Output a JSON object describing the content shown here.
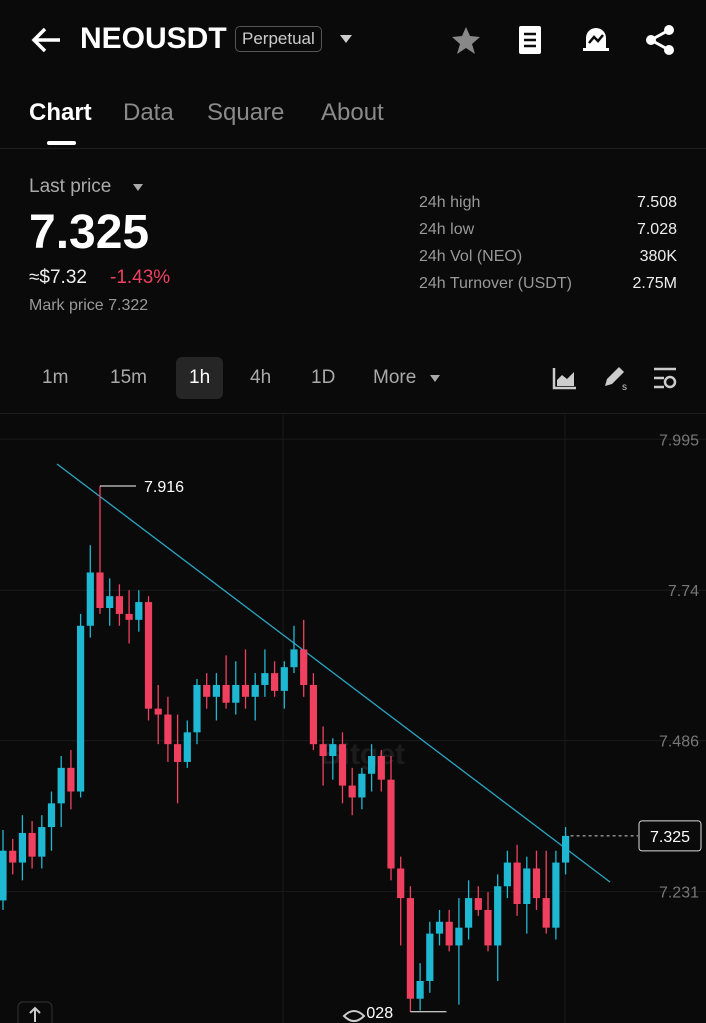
{
  "header": {
    "symbol": "NEOUSDT",
    "badge": "Perpetual"
  },
  "tabs": [
    "Chart",
    "Data",
    "Square",
    "About"
  ],
  "price": {
    "label": "Last price",
    "value": "7.325",
    "usd": "≈$7.32",
    "change": "-1.43%",
    "mark": "Mark price 7.322"
  },
  "stats": [
    {
      "label": "24h high",
      "value": "7.508"
    },
    {
      "label": "24h low",
      "value": "7.028"
    },
    {
      "label": "24h Vol (NEO)",
      "value": "380K"
    },
    {
      "label": "24h Turnover (USDT)",
      "value": "2.75M"
    }
  ],
  "intervals": [
    "1m",
    "15m",
    "1h",
    "4h",
    "1D",
    "More"
  ],
  "chart_data": {
    "type": "candlestick",
    "up_color": "#1fb8d3",
    "down_color": "#f0405f",
    "grid": true,
    "ylim": [
      7.009,
      8.036
    ],
    "yticks": [
      7.995,
      7.74,
      7.486,
      7.231
    ],
    "watermark": "Bitget",
    "max_label": "7.916",
    "min_label": "028",
    "last_price_label": "7.325",
    "open": [
      7.216,
      7.3,
      7.28,
      7.33,
      7.29,
      7.34,
      7.38,
      7.44,
      7.4,
      7.68,
      7.77,
      7.71,
      7.73,
      7.7,
      7.69,
      7.72,
      7.54,
      7.53,
      7.48,
      7.45,
      7.5,
      7.58,
      7.56,
      7.58,
      7.55,
      7.58,
      7.56,
      7.58,
      7.6,
      7.57,
      7.61,
      7.64,
      7.58,
      7.48,
      7.46,
      7.48,
      7.41,
      7.39,
      7.43,
      7.46,
      7.42,
      7.27,
      7.22,
      7.05,
      7.08,
      7.16,
      7.18,
      7.14,
      7.17,
      7.22,
      7.2,
      7.14,
      7.24,
      7.28,
      7.21,
      7.27,
      7.22,
      7.17,
      7.28
    ],
    "high": [
      7.335,
      7.32,
      7.36,
      7.35,
      7.36,
      7.4,
      7.46,
      7.47,
      7.7,
      7.816,
      7.916,
      7.76,
      7.75,
      7.74,
      7.74,
      7.73,
      7.58,
      7.56,
      7.53,
      7.52,
      7.59,
      7.6,
      7.6,
      7.63,
      7.62,
      7.64,
      7.6,
      7.64,
      7.62,
      7.62,
      7.68,
      7.69,
      7.6,
      7.51,
      7.49,
      7.5,
      7.44,
      7.44,
      7.48,
      7.47,
      7.46,
      7.29,
      7.24,
      7.11,
      7.18,
      7.2,
      7.2,
      7.22,
      7.25,
      7.24,
      7.23,
      7.26,
      7.3,
      7.31,
      7.29,
      7.3,
      7.3,
      7.3,
      7.34
    ],
    "low": [
      7.2,
      7.26,
      7.25,
      7.27,
      7.27,
      7.3,
      7.34,
      7.37,
      7.39,
      7.66,
      7.7,
      7.68,
      7.68,
      7.65,
      7.67,
      7.52,
      7.48,
      7.45,
      7.38,
      7.44,
      7.48,
      7.54,
      7.52,
      7.54,
      7.53,
      7.54,
      7.52,
      7.56,
      7.56,
      7.54,
      7.6,
      7.56,
      7.47,
      7.41,
      7.42,
      7.38,
      7.36,
      7.37,
      7.4,
      7.4,
      7.25,
      7.14,
      7.028,
      7.03,
      7.06,
      7.14,
      7.13,
      7.04,
      7.15,
      7.19,
      7.13,
      7.08,
      7.22,
      7.19,
      7.16,
      7.2,
      7.16,
      7.15,
      7.26
    ],
    "close": [
      7.3,
      7.28,
      7.33,
      7.29,
      7.34,
      7.38,
      7.44,
      7.4,
      7.68,
      7.77,
      7.71,
      7.73,
      7.7,
      7.69,
      7.72,
      7.54,
      7.53,
      7.48,
      7.45,
      7.5,
      7.58,
      7.56,
      7.58,
      7.55,
      7.58,
      7.56,
      7.58,
      7.6,
      7.57,
      7.61,
      7.64,
      7.58,
      7.48,
      7.46,
      7.48,
      7.41,
      7.39,
      7.43,
      7.46,
      7.42,
      7.27,
      7.22,
      7.05,
      7.08,
      7.16,
      7.18,
      7.14,
      7.17,
      7.22,
      7.2,
      7.14,
      7.24,
      7.28,
      7.21,
      7.27,
      7.22,
      7.17,
      7.28,
      7.325
    ]
  }
}
